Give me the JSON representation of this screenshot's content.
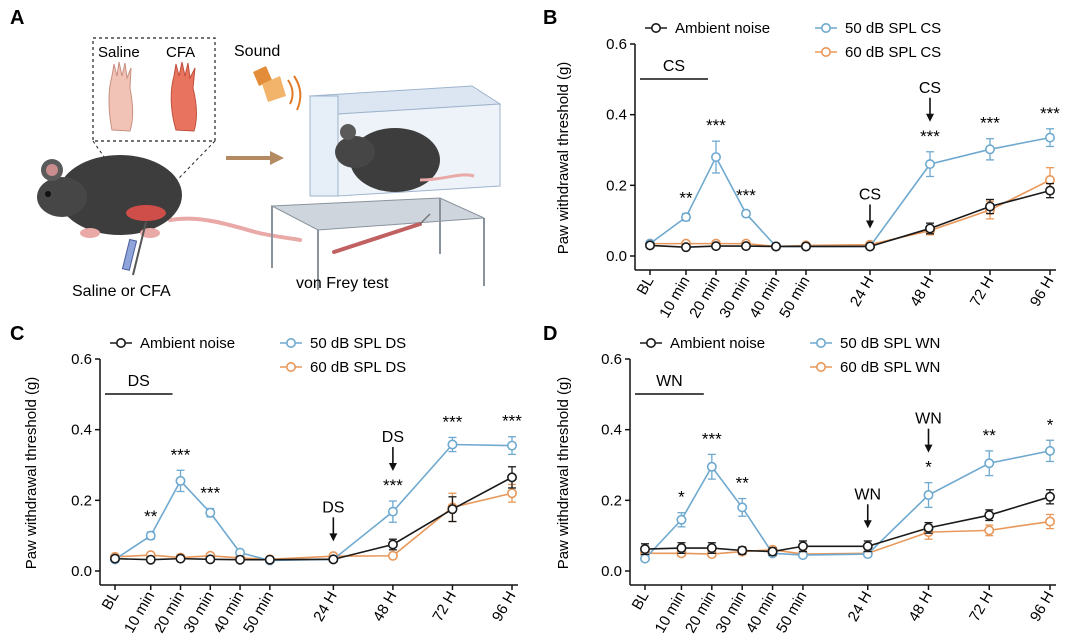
{
  "colors": {
    "ambient": "#1a1a1a",
    "spl50": "#6fa9cf",
    "spl60": "#e8985a",
    "axis": "#111111",
    "illustration_bg": "#ffffff"
  },
  "panelA": {
    "letter": "A",
    "inset_labels": [
      "Saline",
      "CFA"
    ],
    "sound_label": "Sound",
    "injection_label": "Saline or CFA",
    "test_label": "von Frey test"
  },
  "chart_data": [
    {
      "panel": "B",
      "type": "line",
      "ylabel": "Paw withdrawal threshold (g)",
      "ylim": [
        0,
        0.6
      ],
      "yticks": [
        "0.0",
        "0.2",
        "0.4",
        "0.6"
      ],
      "grid": false,
      "legend_position": "top",
      "categories": [
        "BL",
        "10 min",
        "20 min",
        "30 min",
        "40 min",
        "50 min",
        "24 H",
        "48 H",
        "72 H",
        "96 H"
      ],
      "series": [
        {
          "name": "Ambient noise",
          "key": "ambient",
          "values": [
            0.03,
            0.025,
            0.028,
            0.028,
            0.027,
            0.027,
            0.027,
            0.078,
            0.14,
            0.185
          ],
          "errors": [
            0.007,
            0.005,
            0.005,
            0.005,
            0.004,
            0.004,
            0.004,
            0.015,
            0.02,
            0.02
          ]
        },
        {
          "name": "50 dB SPL CS",
          "key": "spl50",
          "values": [
            0.035,
            0.11,
            0.28,
            0.12,
            0.027,
            0.027,
            0.027,
            0.26,
            0.302,
            0.335
          ],
          "errors": [
            0.006,
            0.01,
            0.045,
            0.008,
            0.004,
            0.004,
            0.004,
            0.035,
            0.03,
            0.025
          ]
        },
        {
          "name": "60 dB SPL CS",
          "key": "spl60",
          "values": [
            0.035,
            0.035,
            0.035,
            0.035,
            0.027,
            0.03,
            0.032,
            0.072,
            0.13,
            0.215
          ],
          "errors": [
            0.006,
            0.005,
            0.005,
            0.005,
            0.004,
            0.004,
            0.004,
            0.012,
            0.025,
            0.035
          ]
        }
      ],
      "stars": [
        {
          "index": 1,
          "text": "**"
        },
        {
          "index": 2,
          "text": "***"
        },
        {
          "index": 3,
          "text": "***"
        },
        {
          "index": 7,
          "text": "***"
        },
        {
          "index": 8,
          "text": "***"
        },
        {
          "index": 9,
          "text": "***"
        }
      ],
      "bar_label": "CS",
      "bar_span": [
        0,
        2
      ],
      "arrows": [
        {
          "index": 6,
          "label": "CS"
        },
        {
          "index": 7,
          "label": "CS"
        }
      ]
    },
    {
      "panel": "C",
      "type": "line",
      "ylabel": "Paw withdrawal threshold (g)",
      "ylim": [
        0,
        0.6
      ],
      "yticks": [
        "0.0",
        "0.2",
        "0.4",
        "0.6"
      ],
      "grid": false,
      "legend_position": "top",
      "categories": [
        "BL",
        "10 min",
        "20 min",
        "30 min",
        "40 min",
        "50 min",
        "24 H",
        "48 H",
        "72 H",
        "96 H"
      ],
      "series": [
        {
          "name": "Ambient noise",
          "key": "ambient",
          "values": [
            0.035,
            0.032,
            0.035,
            0.033,
            0.032,
            0.032,
            0.033,
            0.075,
            0.175,
            0.265
          ],
          "errors": [
            0.006,
            0.004,
            0.004,
            0.004,
            0.004,
            0.004,
            0.004,
            0.015,
            0.035,
            0.03
          ]
        },
        {
          "name": "50 dB SPL DS",
          "key": "spl50",
          "values": [
            0.033,
            0.1,
            0.255,
            0.165,
            0.052,
            0.03,
            0.033,
            0.168,
            0.358,
            0.355
          ],
          "errors": [
            0.006,
            0.01,
            0.03,
            0.012,
            0.006,
            0.004,
            0.004,
            0.03,
            0.02,
            0.025
          ]
        },
        {
          "name": "60 dB SPL DS",
          "key": "spl60",
          "values": [
            0.04,
            0.045,
            0.038,
            0.043,
            0.037,
            0.033,
            0.042,
            0.043,
            0.18,
            0.22
          ],
          "errors": [
            0.006,
            0.005,
            0.004,
            0.005,
            0.004,
            0.004,
            0.004,
            0.006,
            0.04,
            0.025
          ]
        }
      ],
      "stars": [
        {
          "index": 1,
          "text": "**"
        },
        {
          "index": 2,
          "text": "***"
        },
        {
          "index": 3,
          "text": "***"
        },
        {
          "index": 7,
          "text": "***"
        },
        {
          "index": 8,
          "text": "***"
        },
        {
          "index": 9,
          "text": "***"
        }
      ],
      "bar_label": "DS",
      "bar_span": [
        0,
        2
      ],
      "arrows": [
        {
          "index": 6,
          "label": "DS"
        },
        {
          "index": 7,
          "label": "DS"
        }
      ]
    },
    {
      "panel": "D",
      "type": "line",
      "ylabel": "Paw withdrawal threshold (g)",
      "ylim": [
        0,
        0.6
      ],
      "yticks": [
        "0.0",
        "0.2",
        "0.4",
        "0.6"
      ],
      "grid": false,
      "legend_position": "top",
      "categories": [
        "BL",
        "10 min",
        "20 min",
        "30 min",
        "40 min",
        "50 min",
        "24 H",
        "48 H",
        "72 H",
        "96 H"
      ],
      "series": [
        {
          "name": "Ambient noise",
          "key": "ambient",
          "values": [
            0.062,
            0.065,
            0.065,
            0.058,
            0.055,
            0.07,
            0.07,
            0.122,
            0.158,
            0.21
          ],
          "errors": [
            0.015,
            0.015,
            0.015,
            0.01,
            0.01,
            0.015,
            0.015,
            0.015,
            0.015,
            0.02
          ]
        },
        {
          "name": "50 dB SPL WN",
          "key": "spl50",
          "values": [
            0.035,
            0.145,
            0.295,
            0.18,
            0.05,
            0.045,
            0.048,
            0.215,
            0.305,
            0.34
          ],
          "errors": [
            0.006,
            0.02,
            0.035,
            0.025,
            0.006,
            0.005,
            0.005,
            0.035,
            0.035,
            0.03
          ]
        },
        {
          "name": "60 dB SPL WN",
          "key": "spl60",
          "values": [
            0.05,
            0.05,
            0.048,
            0.055,
            0.06,
            0.048,
            0.05,
            0.11,
            0.115,
            0.14
          ],
          "errors": [
            0.01,
            0.008,
            0.008,
            0.008,
            0.008,
            0.008,
            0.008,
            0.02,
            0.015,
            0.02
          ]
        }
      ],
      "stars": [
        {
          "index": 1,
          "text": "*"
        },
        {
          "index": 2,
          "text": "***"
        },
        {
          "index": 3,
          "text": "**"
        },
        {
          "index": 7,
          "text": "*"
        },
        {
          "index": 8,
          "text": "**"
        },
        {
          "index": 9,
          "text": "*"
        }
      ],
      "bar_label": "WN",
      "bar_span": [
        0,
        2
      ],
      "arrows": [
        {
          "index": 6,
          "label": "WN"
        },
        {
          "index": 7,
          "label": "WN"
        }
      ]
    }
  ]
}
